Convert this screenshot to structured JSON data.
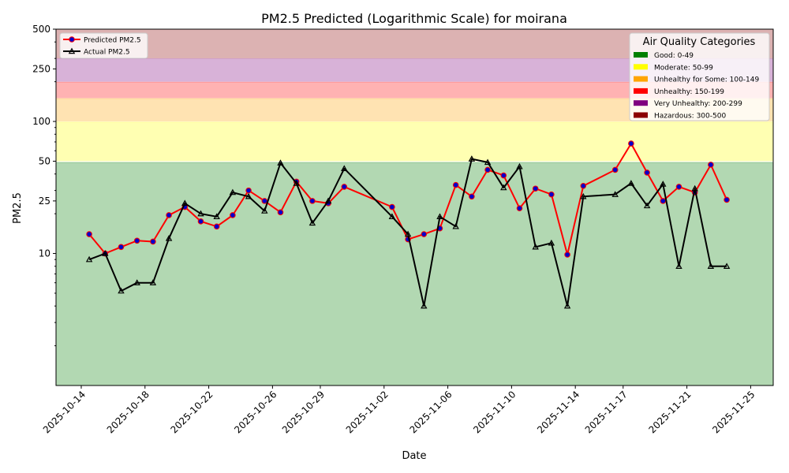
{
  "chart_data": {
    "type": "line",
    "title": "PM2.5 Predicted (Logarithmic Scale) for moirana",
    "xlabel": "Date",
    "ylabel": "PM2.5",
    "yscale": "log",
    "ylim": [
      1,
      500
    ],
    "xlim": [
      "2025-10-12T10:00",
      "2025-11-26T10:00"
    ],
    "y_ticks": [
      {
        "value": 10,
        "label": "10"
      },
      {
        "value": 25,
        "label": "25"
      },
      {
        "value": 50,
        "label": "50"
      },
      {
        "value": 100,
        "label": "100"
      },
      {
        "value": 250,
        "label": "250"
      },
      {
        "value": 500,
        "label": "500"
      }
    ],
    "x_ticks": [
      {
        "date": "2025-10-14",
        "label": "2025-10-14"
      },
      {
        "date": "2025-10-18",
        "label": "2025-10-18"
      },
      {
        "date": "2025-10-22",
        "label": "2025-10-22"
      },
      {
        "date": "2025-10-26",
        "label": "2025-10-26"
      },
      {
        "date": "2025-10-29",
        "label": "2025-10-29"
      },
      {
        "date": "2025-11-02",
        "label": "2025-11-02"
      },
      {
        "date": "2025-11-06",
        "label": "2025-11-06"
      },
      {
        "date": "2025-11-10",
        "label": "2025-11-10"
      },
      {
        "date": "2025-11-14",
        "label": "2025-11-14"
      },
      {
        "date": "2025-11-17",
        "label": "2025-11-17"
      },
      {
        "date": "2025-11-21",
        "label": "2025-11-21"
      },
      {
        "date": "2025-11-25",
        "label": "2025-11-25"
      }
    ],
    "categories_bands": [
      {
        "label": "Good: 0-49",
        "min": 0,
        "max": 49,
        "color": "#008000",
        "band_fill": "#b2d8b2"
      },
      {
        "label": "Moderate: 50-99",
        "min": 50,
        "max": 99,
        "color": "#ffff00",
        "band_fill": "#ffffb2"
      },
      {
        "label": "Unhealthy for Some: 100-149",
        "min": 100,
        "max": 149,
        "color": "#ffa500",
        "band_fill": "#ffe3b2"
      },
      {
        "label": "Unhealthy: 150-199",
        "min": 150,
        "max": 199,
        "color": "#ff0000",
        "band_fill": "#ffb2b2"
      },
      {
        "label": "Very Unhealthy: 200-299",
        "min": 200,
        "max": 299,
        "color": "#800080",
        "band_fill": "#d8b2d8"
      },
      {
        "label": "Hazardous: 300-500",
        "min": 300,
        "max": 500,
        "color": "#8b0000",
        "band_fill": "#dcb2b2"
      }
    ],
    "series": [
      {
        "name": "Predicted PM2.5",
        "color": "#ff0000",
        "marker_fill": "#0000cc",
        "points": [
          {
            "x": "2025-10-14T12:00",
            "y": 14
          },
          {
            "x": "2025-10-15T12:00",
            "y": 10
          },
          {
            "x": "2025-10-16T12:00",
            "y": 11.2
          },
          {
            "x": "2025-10-17T12:00",
            "y": 12.5
          },
          {
            "x": "2025-10-18T12:00",
            "y": 12.3
          },
          {
            "x": "2025-10-19T12:00",
            "y": 19.5
          },
          {
            "x": "2025-10-20T12:00",
            "y": 22.5
          },
          {
            "x": "2025-10-21T12:00",
            "y": 17.5
          },
          {
            "x": "2025-10-22T12:00",
            "y": 16
          },
          {
            "x": "2025-10-23T12:00",
            "y": 19.5
          },
          {
            "x": "2025-10-24T12:00",
            "y": 30
          },
          {
            "x": "2025-10-25T12:00",
            "y": 25
          },
          {
            "x": "2025-10-26T12:00",
            "y": 20.5
          },
          {
            "x": "2025-10-27T12:00",
            "y": 35
          },
          {
            "x": "2025-10-28T12:00",
            "y": 25
          },
          {
            "x": "2025-10-29T12:00",
            "y": 24
          },
          {
            "x": "2025-10-30T12:00",
            "y": 32
          },
          {
            "x": "2025-11-02T12:00",
            "y": 22.5
          },
          {
            "x": "2025-11-03T12:00",
            "y": 12.8
          },
          {
            "x": "2025-11-04T12:00",
            "y": 14
          },
          {
            "x": "2025-11-05T12:00",
            "y": 15.5
          },
          {
            "x": "2025-11-06T12:00",
            "y": 33
          },
          {
            "x": "2025-11-07T12:00",
            "y": 27
          },
          {
            "x": "2025-11-08T12:00",
            "y": 43
          },
          {
            "x": "2025-11-09T12:00",
            "y": 39
          },
          {
            "x": "2025-11-10T12:00",
            "y": 22
          },
          {
            "x": "2025-11-11T12:00",
            "y": 31
          },
          {
            "x": "2025-11-12T12:00",
            "y": 28
          },
          {
            "x": "2025-11-13T12:00",
            "y": 9.8
          },
          {
            "x": "2025-11-14T12:00",
            "y": 32.5
          },
          {
            "x": "2025-11-16T12:00",
            "y": 43
          },
          {
            "x": "2025-11-17T12:00",
            "y": 68
          },
          {
            "x": "2025-11-18T12:00",
            "y": 41
          },
          {
            "x": "2025-11-19T12:00",
            "y": 25
          },
          {
            "x": "2025-11-20T12:00",
            "y": 32
          },
          {
            "x": "2025-11-21T12:00",
            "y": 29
          },
          {
            "x": "2025-11-22T12:00",
            "y": 47
          },
          {
            "x": "2025-11-23T12:00",
            "y": 25.5
          }
        ]
      },
      {
        "name": "Actual PM2.5",
        "color": "#000000",
        "points": [
          {
            "x": "2025-10-14T12:00",
            "y": 9
          },
          {
            "x": "2025-10-15T12:00",
            "y": 10
          },
          {
            "x": "2025-10-16T12:00",
            "y": 5.2
          },
          {
            "x": "2025-10-17T12:00",
            "y": 6
          },
          {
            "x": "2025-10-18T12:00",
            "y": 6
          },
          {
            "x": "2025-10-19T12:00",
            "y": 13
          },
          {
            "x": "2025-10-20T12:00",
            "y": 24
          },
          {
            "x": "2025-10-21T12:00",
            "y": 20
          },
          {
            "x": "2025-10-22T12:00",
            "y": 19
          },
          {
            "x": "2025-10-23T12:00",
            "y": 29
          },
          {
            "x": "2025-10-24T12:00",
            "y": 27
          },
          {
            "x": "2025-10-25T12:00",
            "y": 21
          },
          {
            "x": "2025-10-26T12:00",
            "y": 48.5
          },
          {
            "x": "2025-10-27T12:00",
            "y": 34
          },
          {
            "x": "2025-10-28T12:00",
            "y": 17
          },
          {
            "x": "2025-10-29T12:00",
            "y": 25
          },
          {
            "x": "2025-10-30T12:00",
            "y": 44
          },
          {
            "x": "2025-11-02T12:00",
            "y": 19
          },
          {
            "x": "2025-11-03T12:00",
            "y": 14
          },
          {
            "x": "2025-11-04T12:00",
            "y": 4
          },
          {
            "x": "2025-11-05T12:00",
            "y": 19
          },
          {
            "x": "2025-11-06T12:00",
            "y": 16
          },
          {
            "x": "2025-11-07T12:00",
            "y": 52
          },
          {
            "x": "2025-11-08T12:00",
            "y": 49
          },
          {
            "x": "2025-11-09T12:00",
            "y": 31.5
          },
          {
            "x": "2025-11-10T12:00",
            "y": 45.5
          },
          {
            "x": "2025-11-11T12:00",
            "y": 11.2
          },
          {
            "x": "2025-11-12T12:00",
            "y": 12
          },
          {
            "x": "2025-11-13T12:00",
            "y": 4
          },
          {
            "x": "2025-11-14T12:00",
            "y": 27
          },
          {
            "x": "2025-11-16T12:00",
            "y": 28
          },
          {
            "x": "2025-11-17T12:00",
            "y": 34
          },
          {
            "x": "2025-11-18T12:00",
            "y": 23
          },
          {
            "x": "2025-11-19T12:00",
            "y": 33.5
          },
          {
            "x": "2025-11-20T12:00",
            "y": 8
          },
          {
            "x": "2025-11-21T12:00",
            "y": 31
          },
          {
            "x": "2025-11-22T12:00",
            "y": 8
          },
          {
            "x": "2025-11-23T12:00",
            "y": 8
          }
        ]
      }
    ],
    "legend_series_placement": "top-left",
    "legend_categories": {
      "title": "Air Quality Categories",
      "placement": "top-right"
    }
  }
}
